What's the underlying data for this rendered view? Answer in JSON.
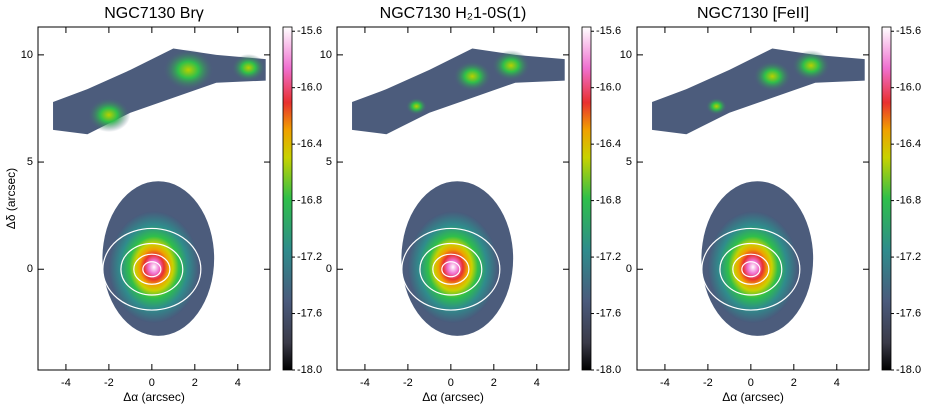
{
  "chart_data": [
    {
      "type": "heatmap",
      "title": "NGC7130 Brγ",
      "xlabel": "Δα (arcsec)",
      "ylabel": "Δδ (arcsec)",
      "xlim": [
        -5.3,
        5.5
      ],
      "ylim": [
        -4.7,
        11.3
      ],
      "xticks": [
        -4,
        -2,
        0,
        2,
        4
      ],
      "yticks": [
        0,
        5,
        10
      ],
      "clim": [
        -18.0,
        -15.57
      ],
      "cticks": [
        -15.6,
        {
          "value": -16.0,
          "label": "-16.0"
        },
        -16.4,
        -16.8,
        -17.2,
        -17.6,
        {
          "value": -18.0,
          "label": "-18.0"
        }
      ]
    },
    {
      "type": "heatmap",
      "title": "NGC7130 H₂1-0S(1)",
      "xlabel": "Δα (arcsec)",
      "xlim": [
        -5.3,
        5.5
      ],
      "ylim": [
        -4.7,
        11.3
      ],
      "xticks": [
        -4,
        -2,
        0,
        2,
        4
      ],
      "yticks": [
        0,
        5,
        10
      ],
      "clim": [
        -18.0,
        -15.57
      ],
      "cticks": [
        -15.6,
        {
          "value": -16.0,
          "label": "-16.0"
        },
        -16.4,
        -16.8,
        -17.2,
        -17.6,
        {
          "value": -18.0,
          "label": "-18.0"
        }
      ]
    },
    {
      "type": "heatmap",
      "title": "NGC7130 [FeII]",
      "xlabel": "Δα (arcsec)",
      "xlim": [
        -5.3,
        5.5
      ],
      "ylim": [
        -4.7,
        11.3
      ],
      "xticks": [
        -4,
        -2,
        0,
        2,
        4
      ],
      "yticks": [
        0,
        5,
        10
      ],
      "clim": [
        -18.0,
        -15.57
      ],
      "cticks": [
        -15.6,
        {
          "value": -16.0,
          "label": "-16.0"
        },
        -16.4,
        -16.8,
        -17.2,
        -17.6,
        {
          "value": -18.0,
          "label": "-18.0"
        }
      ]
    }
  ]
}
